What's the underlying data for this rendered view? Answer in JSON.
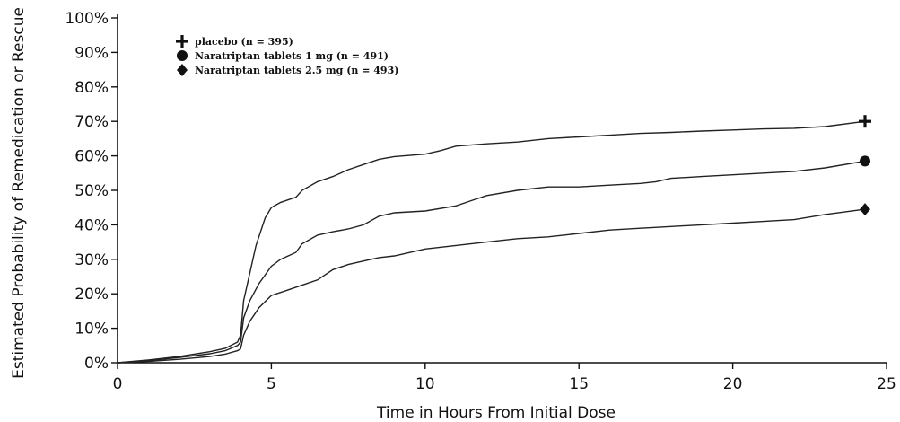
{
  "chart_data": {
    "type": "line",
    "title": "",
    "xlabel": "Time in Hours From Initial Dose",
    "ylabel": "Estimated Probability of Remedication or Rescue",
    "xlim": [
      0,
      25
    ],
    "ylim": [
      0,
      100
    ],
    "x_ticks": [
      0,
      5,
      10,
      15,
      20,
      25
    ],
    "y_ticks": [
      0,
      10,
      20,
      30,
      40,
      50,
      60,
      70,
      80,
      90,
      100
    ],
    "y_tick_suffix": "%",
    "grid": false,
    "legend_position": "top-left",
    "series": [
      {
        "name": "placebo (n = 395)",
        "marker": "plus",
        "x": [
          0,
          1,
          2,
          3,
          3.5,
          3.9,
          4.0,
          4.1,
          4.3,
          4.5,
          4.8,
          5.0,
          5.3,
          5.8,
          6.0,
          6.5,
          7.0,
          7.5,
          8.0,
          8.5,
          9.0,
          10.0,
          10.5,
          11.0,
          12.0,
          13.0,
          14.0,
          15.0,
          16.0,
          17.0,
          18.0,
          19.0,
          20.0,
          21.0,
          22.0,
          23.0,
          24.3
        ],
        "y": [
          0,
          0.8,
          1.8,
          3.2,
          4.2,
          6.0,
          8.0,
          18.0,
          26.0,
          34.0,
          42.0,
          45.0,
          46.5,
          48.0,
          50.0,
          52.5,
          54.0,
          56.0,
          57.5,
          59.0,
          59.8,
          60.5,
          61.5,
          62.8,
          63.5,
          64.0,
          65.0,
          65.5,
          66.0,
          66.5,
          66.8,
          67.2,
          67.5,
          67.8,
          68.0,
          68.5,
          70.0
        ]
      },
      {
        "name": "Naratriptan tablets 1 mg (n = 491)",
        "marker": "circle",
        "x": [
          0,
          1,
          2,
          3,
          3.5,
          3.9,
          4.0,
          4.1,
          4.3,
          4.6,
          5.0,
          5.3,
          5.8,
          6.0,
          6.5,
          7.0,
          7.5,
          8.0,
          8.5,
          9.0,
          10.0,
          11.0,
          11.5,
          12.0,
          13.0,
          14.0,
          15.0,
          16.0,
          17.0,
          17.5,
          18.0,
          19.0,
          20.0,
          21.0,
          22.0,
          23.0,
          24.3
        ],
        "y": [
          0,
          0.6,
          1.5,
          2.6,
          3.5,
          5.0,
          6.0,
          13.0,
          18.0,
          23.0,
          28.0,
          30.0,
          32.0,
          34.5,
          37.0,
          38.0,
          38.8,
          40.0,
          42.5,
          43.5,
          44.0,
          45.5,
          47.0,
          48.5,
          50.0,
          51.0,
          51.0,
          51.5,
          52.0,
          52.5,
          53.5,
          54.0,
          54.5,
          55.0,
          55.5,
          56.5,
          58.5
        ]
      },
      {
        "name": "Naratriptan tablets 2.5 mg (n = 493)",
        "marker": "diamond",
        "x": [
          0,
          1,
          2,
          3,
          3.5,
          3.9,
          4.0,
          4.1,
          4.3,
          4.6,
          5.0,
          5.5,
          6.0,
          6.5,
          7.0,
          7.5,
          8.0,
          8.5,
          9.0,
          10.0,
          11.0,
          12.0,
          13.0,
          14.0,
          15.0,
          16.0,
          17.0,
          18.0,
          19.0,
          20.0,
          21.0,
          22.0,
          23.0,
          24.3
        ],
        "y": [
          0,
          0.4,
          1.0,
          1.8,
          2.5,
          3.5,
          4.0,
          8.0,
          12.0,
          16.0,
          19.5,
          21.0,
          22.5,
          24.0,
          27.0,
          28.5,
          29.5,
          30.5,
          31.0,
          33.0,
          34.0,
          35.0,
          36.0,
          36.5,
          37.5,
          38.5,
          39.0,
          39.5,
          40.0,
          40.5,
          41.0,
          41.5,
          43.0,
          44.5
        ]
      }
    ]
  }
}
